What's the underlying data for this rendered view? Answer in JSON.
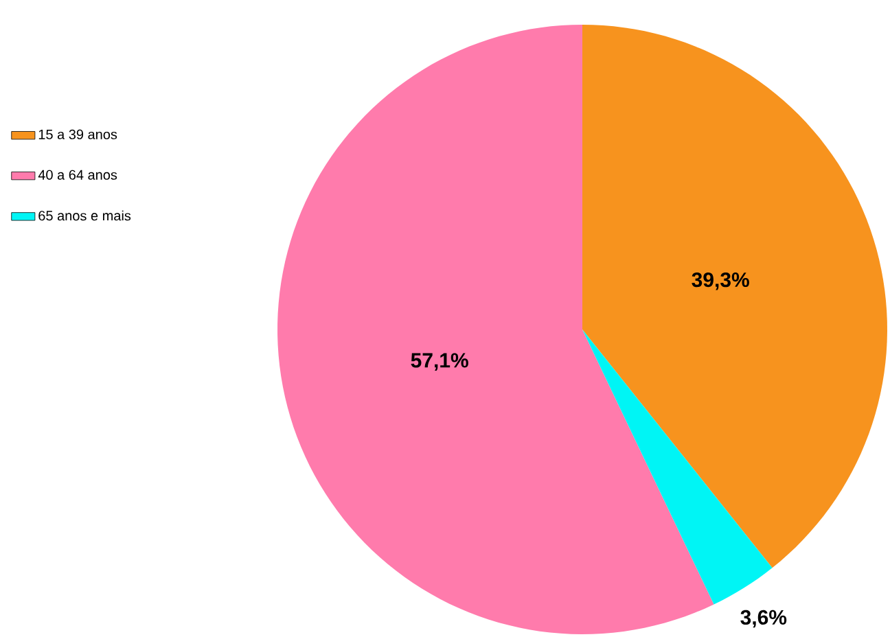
{
  "chart_data": {
    "type": "pie",
    "categories": [
      "15 a 39 anos",
      "40 a 64 anos",
      "65 anos e mais"
    ],
    "values": [
      39.3,
      57.1,
      3.6
    ],
    "colors": [
      "#f7931e",
      "#ff7bac",
      "#00f5f5"
    ],
    "value_labels": [
      "39,3%",
      "57,1%",
      "3,6%"
    ],
    "legend": "left"
  }
}
